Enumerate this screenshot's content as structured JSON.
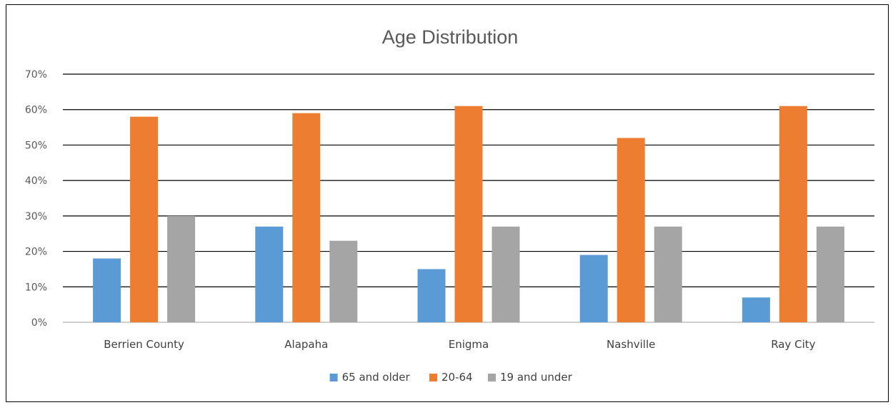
{
  "chart_data": {
    "type": "bar",
    "title": "Age Distribution",
    "xlabel": "",
    "ylabel": "",
    "categories": [
      "Berrien County",
      "Alapaha",
      "Enigma",
      "Nashville",
      "Ray City"
    ],
    "series": [
      {
        "name": "65 and older",
        "color": "#5b9bd5",
        "values": [
          18,
          27,
          15,
          19,
          7
        ]
      },
      {
        "name": "20-64",
        "color": "#ed7d31",
        "values": [
          58,
          59,
          61,
          52,
          61
        ]
      },
      {
        "name": "19 and under",
        "color": "#a5a5a5",
        "values": [
          30,
          23,
          27,
          27,
          27
        ]
      }
    ],
    "ylim": [
      0,
      70
    ],
    "ytick_step": 10,
    "ytick_labels": [
      "0%",
      "10%",
      "20%",
      "30%",
      "40%",
      "50%",
      "60%",
      "70%"
    ],
    "grid": true,
    "legend_position": "bottom"
  }
}
